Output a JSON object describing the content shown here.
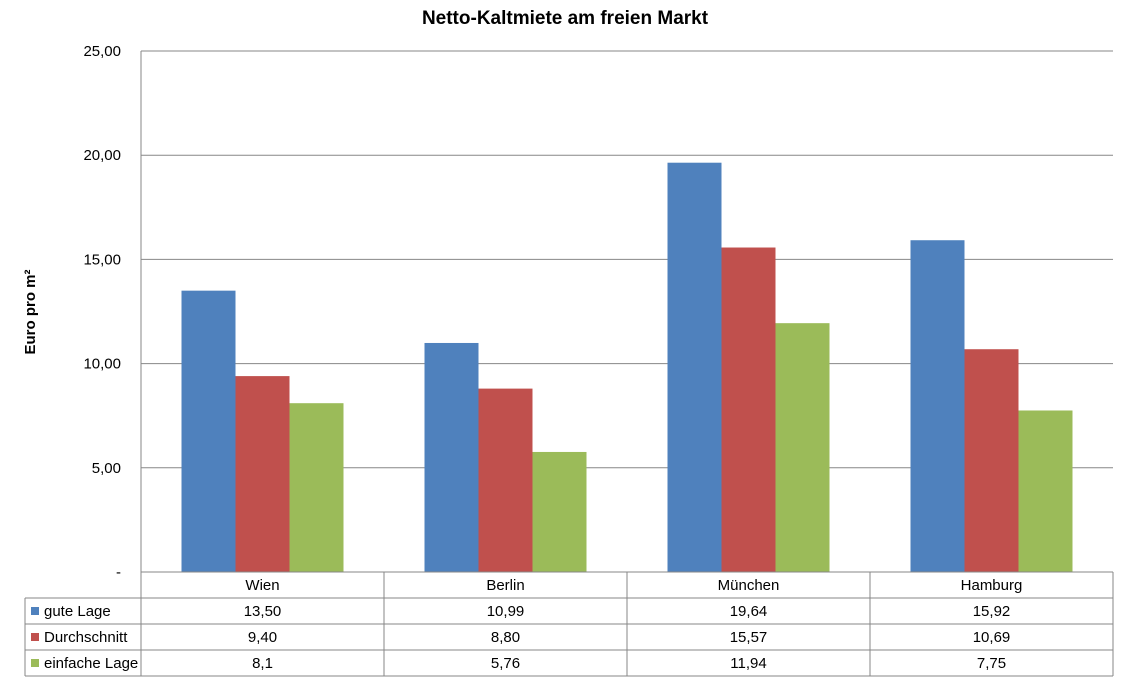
{
  "chart_data": {
    "type": "bar",
    "title": "Netto-Kaltmiete am freien Markt",
    "xlabel": "",
    "ylabel": "Euro pro m²",
    "ylim": [
      0,
      25
    ],
    "yticks": [
      0,
      5,
      10,
      15,
      20,
      25
    ],
    "ytick_labels": [
      "-",
      "5,00",
      "10,00",
      "15,00",
      "20,00",
      "25,00"
    ],
    "grid": true,
    "legend": "data-table-left",
    "categories": [
      "Wien",
      "Berlin",
      "München",
      "Hamburg"
    ],
    "series": [
      {
        "name": "gute Lage",
        "color": "#4F81BD",
        "values": [
          13.5,
          10.99,
          19.64,
          15.92
        ],
        "labels": [
          "13,50",
          "10,99",
          "19,64",
          "15,92"
        ]
      },
      {
        "name": "Durchschnitt",
        "color": "#C0504D",
        "values": [
          9.4,
          8.8,
          15.57,
          10.69
        ],
        "labels": [
          "9,40",
          "8,80",
          "15,57",
          "10,69"
        ]
      },
      {
        "name": "einfache Lage",
        "color": "#9BBB59",
        "values": [
          8.1,
          5.76,
          11.94,
          7.75
        ],
        "labels": [
          "8,1",
          "5,76",
          "11,94",
          "7,75"
        ]
      }
    ]
  }
}
